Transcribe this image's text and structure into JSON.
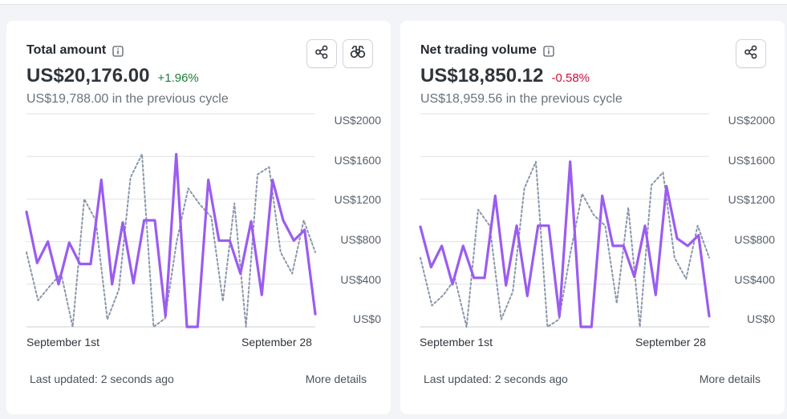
{
  "colors": {
    "current": "#9b5cf0",
    "previous": "#8a96ab",
    "grid": "#dfe2e7"
  },
  "cards": [
    {
      "title": "Total amount",
      "value": "US$20,176.00",
      "delta": "+1.96%",
      "delta_trend": "positive",
      "previous_text": "US$19,788.00 in the previous cycle",
      "actions": [
        "share-icon",
        "binoculars-icon"
      ],
      "footer_left": "Last updated: 2 seconds ago",
      "footer_right": "More details",
      "chart_data": {
        "type": "line",
        "x_labels": [
          "September 1st",
          "September 28"
        ],
        "y_ticks": [
          "US$2000",
          "US$1600",
          "US$1200",
          "US$800",
          "US$400",
          "US$0"
        ],
        "ylim": [
          0,
          2000
        ],
        "grid": true,
        "series": [
          {
            "role": "current",
            "values": [
              1080,
              600,
              800,
              400,
              790,
              590,
              590,
              1380,
              400,
              980,
              410,
              1000,
              1000,
              100,
              1620,
              0,
              0,
              1380,
              810,
              810,
              500,
              990,
              300,
              1380,
              1000,
              810,
              910,
              120
            ]
          },
          {
            "role": "previous",
            "values": [
              700,
              250,
              380,
              500,
              0,
              1200,
              1000,
              70,
              350,
              1400,
              1620,
              0,
              80,
              800,
              1300,
              1150,
              1030,
              240,
              1160,
              0,
              1430,
              1500,
              700,
              500,
              1000,
              700
            ]
          }
        ]
      }
    },
    {
      "title": "Net trading volume",
      "value": "US$18,850.12",
      "delta": "-0.58%",
      "delta_trend": "negative",
      "previous_text": "US$18,959.56 in the previous cycle",
      "actions": [
        "share-icon"
      ],
      "footer_left": "Last updated: 2 seconds ago",
      "footer_right": "More details",
      "chart_data": {
        "type": "line",
        "x_labels": [
          "September 1st",
          "September 28"
        ],
        "y_ticks": [
          "US$2000",
          "US$1600",
          "US$1200",
          "US$800",
          "US$400",
          "US$0"
        ],
        "ylim": [
          0,
          2000
        ],
        "grid": true,
        "series": [
          {
            "role": "current",
            "values": [
              940,
              560,
              760,
              400,
              760,
              460,
              460,
              1230,
              390,
              950,
              290,
              950,
              950,
              100,
              1550,
              0,
              0,
              1230,
              760,
              760,
              470,
              950,
              300,
              1320,
              830,
              760,
              860,
              100
            ]
          },
          {
            "role": "previous",
            "values": [
              650,
              200,
              300,
              450,
              0,
              1100,
              950,
              70,
              330,
              1300,
              1550,
              0,
              70,
              700,
              1250,
              1050,
              950,
              220,
              1120,
              0,
              1330,
              1450,
              650,
              450,
              950,
              650
            ]
          }
        ]
      }
    }
  ]
}
